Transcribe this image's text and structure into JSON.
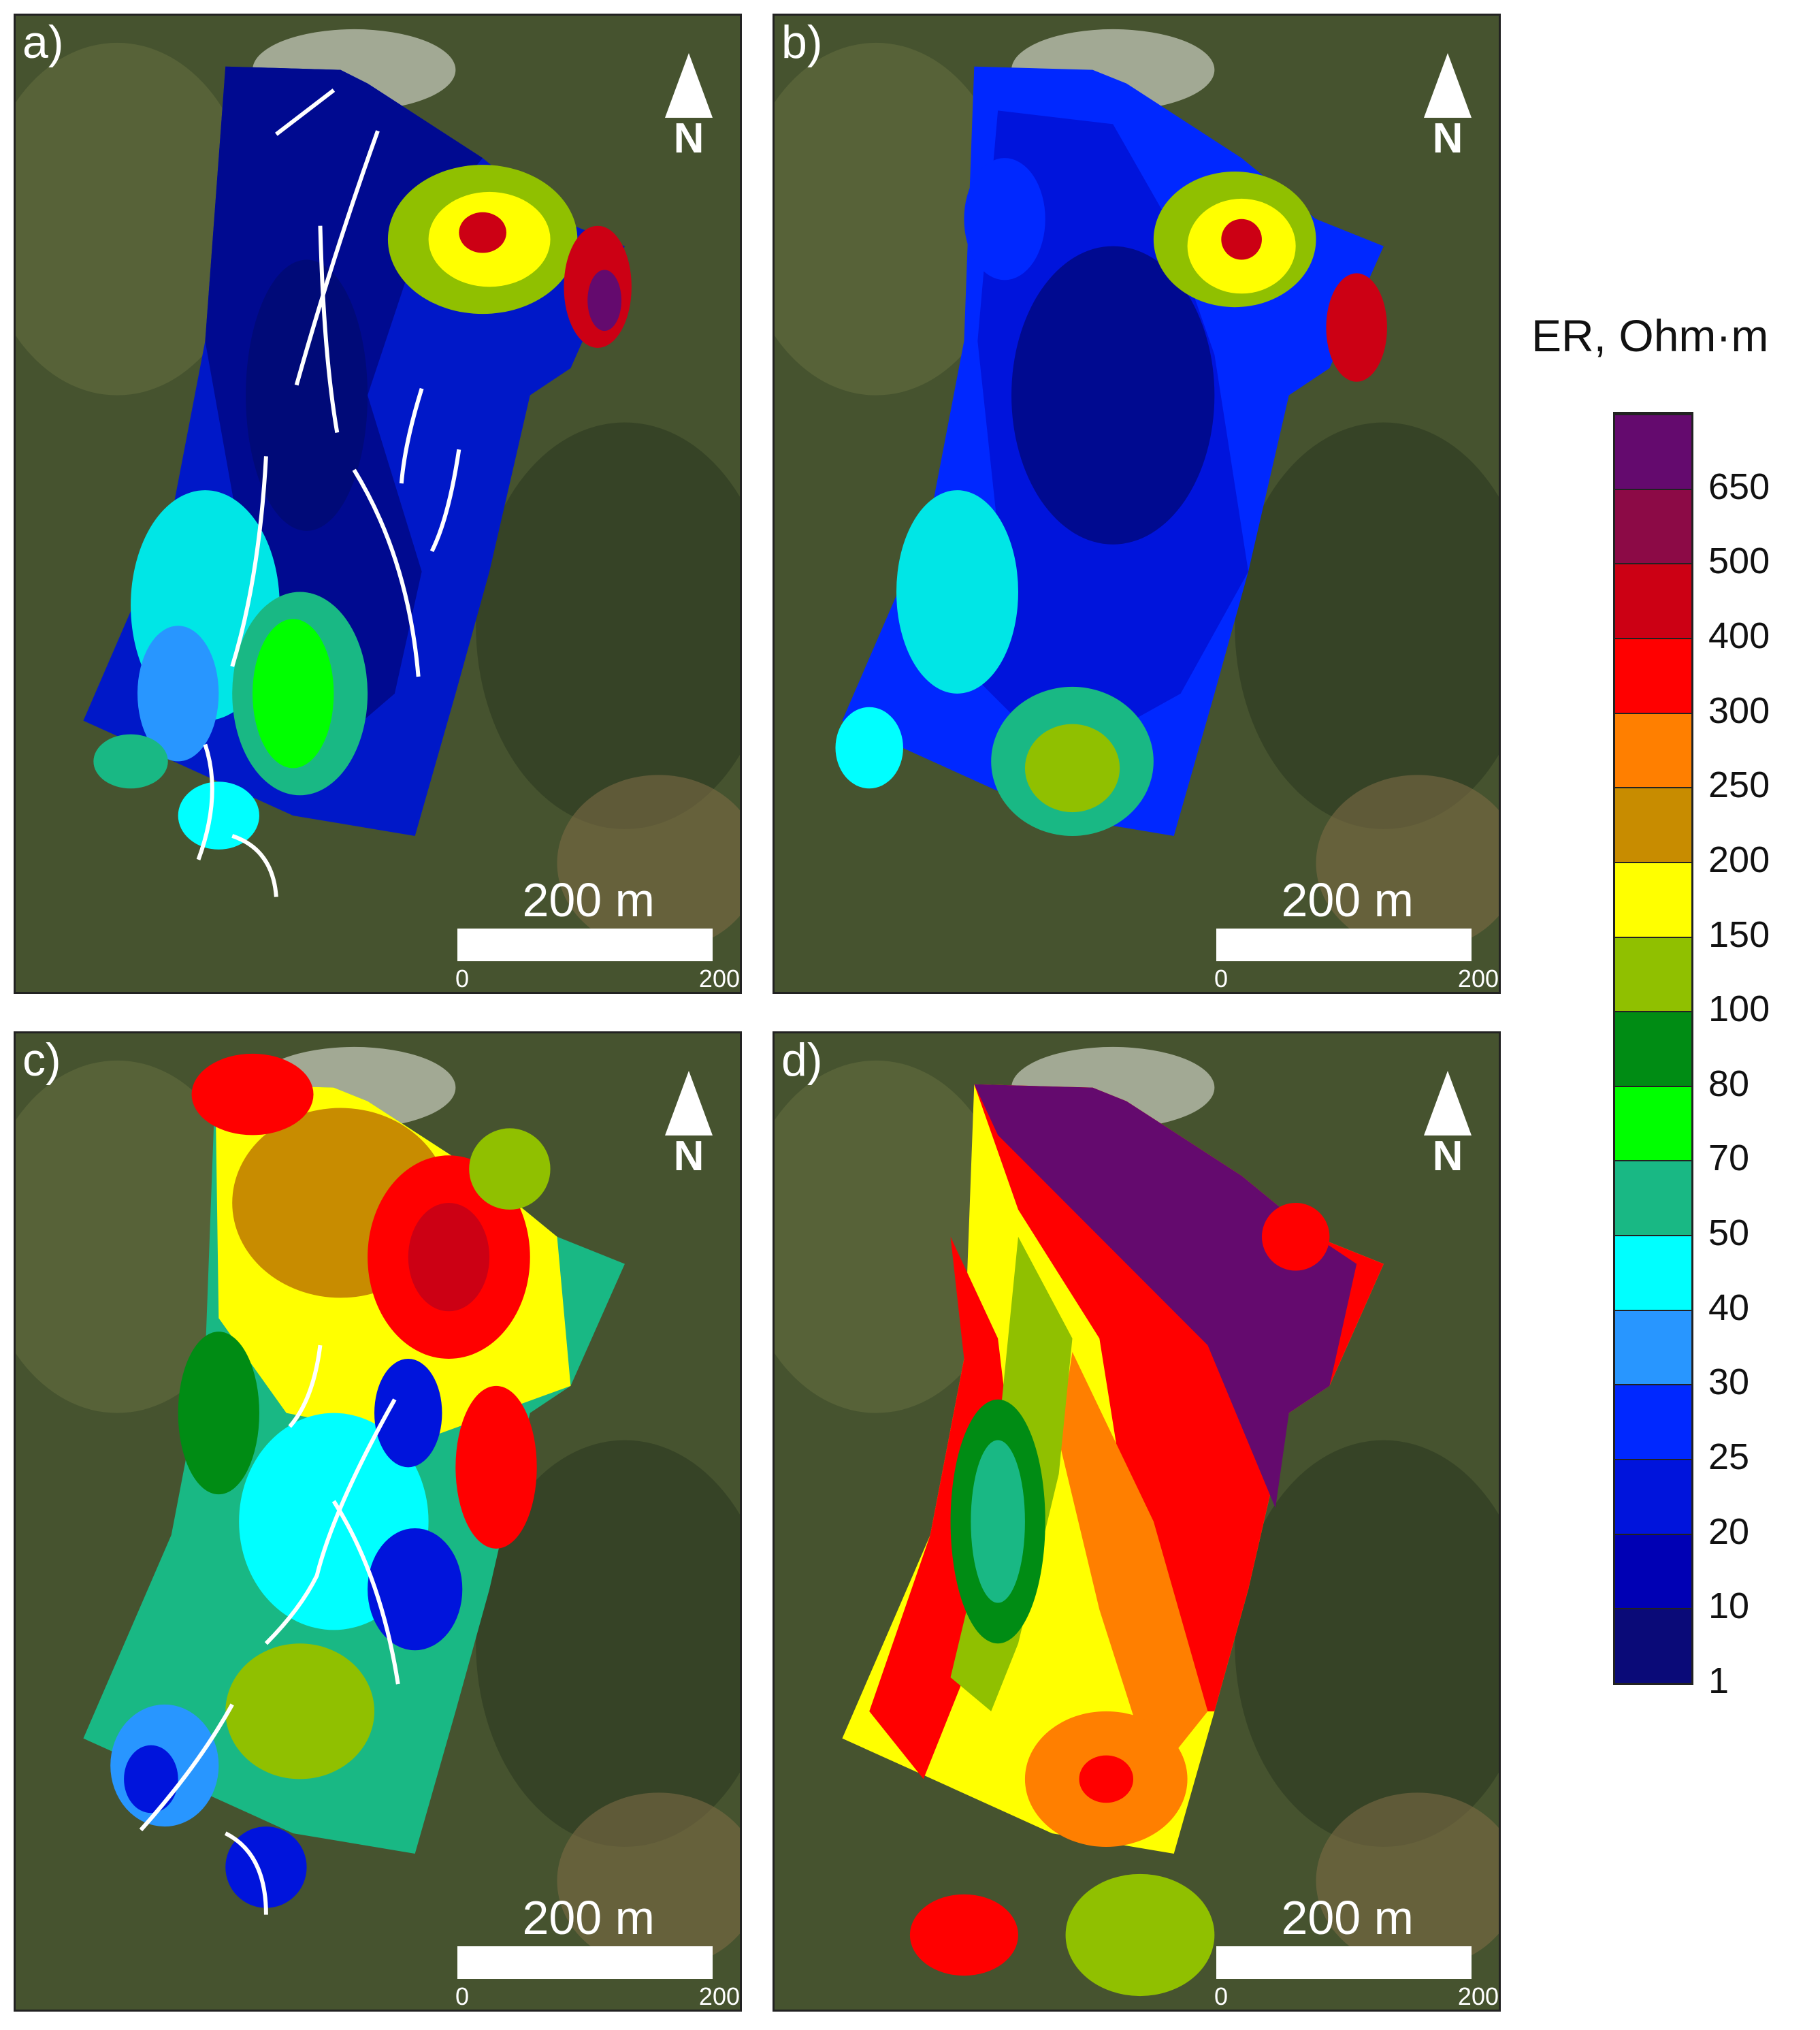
{
  "panels": [
    {
      "label": "a)",
      "north": "N",
      "scale": {
        "title": "200 m",
        "tick_start": "0",
        "tick_end": "200"
      }
    },
    {
      "label": "b)",
      "north": "N",
      "scale": {
        "title": "200 m",
        "tick_start": "0",
        "tick_end": "200"
      }
    },
    {
      "label": "c)",
      "north": "N",
      "scale": {
        "title": "200 m",
        "tick_start": "0",
        "tick_end": "200"
      }
    },
    {
      "label": "d)",
      "north": "N",
      "scale": {
        "title": "200 m",
        "tick_start": "0",
        "tick_end": "200"
      }
    }
  ],
  "legend": {
    "title": "ER, Ohm·m",
    "labels": [
      "650",
      "500",
      "400",
      "300",
      "250",
      "200",
      "150",
      "100",
      "80",
      "70",
      "50",
      "40",
      "30",
      "25",
      "20",
      "10",
      "1"
    ],
    "colors_top_to_bottom": [
      "#640a6e",
      "#8c0a46",
      "#cc0014",
      "#ff0000",
      "#ff7f00",
      "#c88c00",
      "#ffff00",
      "#90c000",
      "#008c14",
      "#00ff00",
      "#19b884",
      "#00ffff",
      "#2896ff",
      "#0028ff",
      "#0014dc",
      "#0000b4",
      "#0a0a78"
    ]
  },
  "colors": {
    "satellite_dark": "#3e4a2c",
    "satellite_light": "#6b7148",
    "arrow": "#ffffff"
  }
}
